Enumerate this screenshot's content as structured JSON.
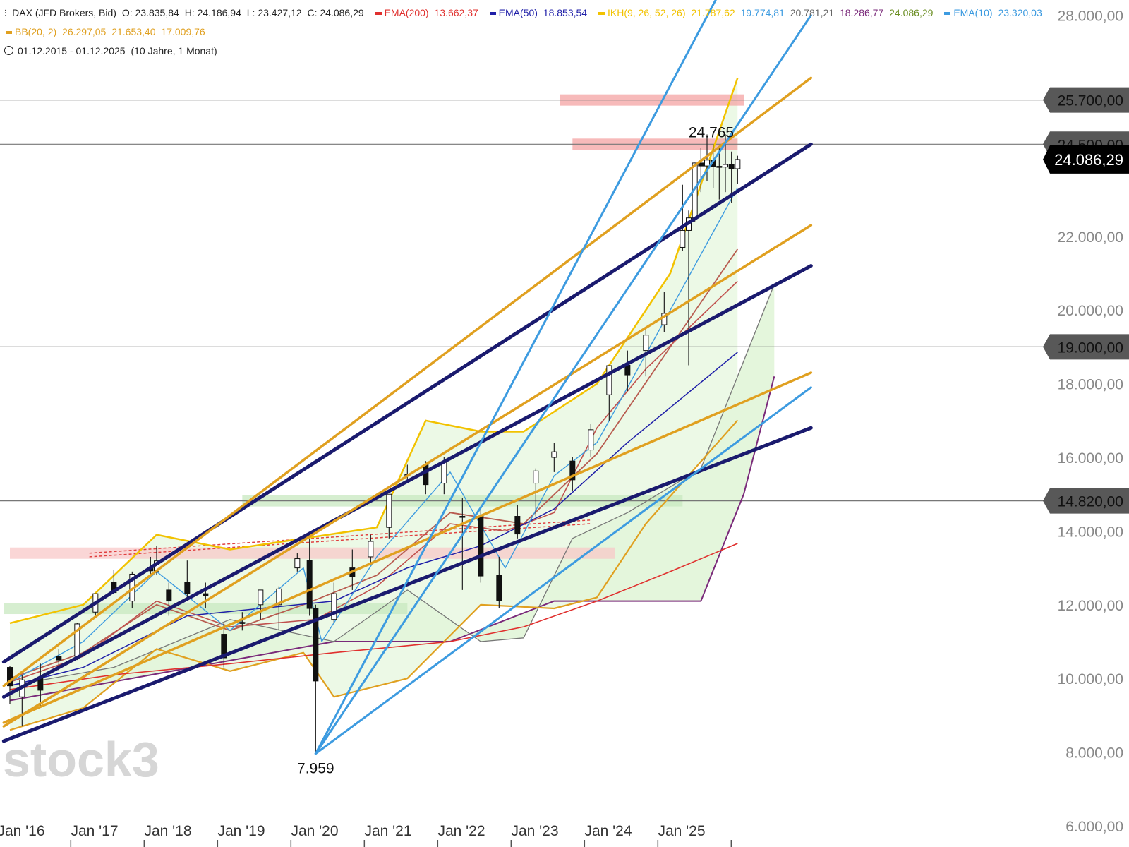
{
  "header": {
    "symbol": "DAX (JFD Brokers, Bid)",
    "open": "O: 23.835,84",
    "high": "H: 24.186,94",
    "low": "L: 23.427,12",
    "close": "C: 24.086,29",
    "indicators": [
      {
        "label": "EMA(200)",
        "value": "13.662,37",
        "color": "#e0302e"
      },
      {
        "label": "EMA(50)",
        "value": "18.853,54",
        "color": "#1f1fa8"
      },
      {
        "label": "IKH(9, 26, 52, 26)",
        "value": "21.787,62",
        "color": "#f2c200"
      },
      {
        "label": "",
        "value": "19.774,81",
        "color": "#3d9be0"
      },
      {
        "label": "",
        "value": "20.781,21",
        "color": "#666666"
      },
      {
        "label": "",
        "value": "18.286,77",
        "color": "#7a2a7a"
      },
      {
        "label": "",
        "value": "24.086,29",
        "color": "#6b8e23"
      },
      {
        "label": "EMA(10)",
        "value": "23.320,03",
        "color": "#3d9be0"
      }
    ],
    "bb": {
      "label": "BB(20, 2)",
      "values": [
        "26.297,05",
        "21.653,40",
        "17.009,76"
      ],
      "color": "#e0a020"
    },
    "range": "01.12.2015 - 01.12.2025",
    "range_note": "(10 Jahre, 1 Monat)"
  },
  "watermark": "stock3",
  "chart_data": {
    "type": "candlestick",
    "x_tick_labels": [
      "Jan '16",
      "Jan '17",
      "Jan '18",
      "Jan '19",
      "Jan '20",
      "Jan '21",
      "Jan '22",
      "Jan '23",
      "Jan '24",
      "Jan '25"
    ],
    "y_tick_labels": [
      "6.000,00",
      "8.000,00",
      "10.000,00",
      "12.000,00",
      "14.000,00",
      "16.000,00",
      "18.000,00",
      "20.000,00",
      "22.000,00",
      "28.000,00"
    ],
    "ylim": [
      6000,
      28000
    ],
    "price_tags": [
      {
        "text": "25.700,00",
        "value": 25700
      },
      {
        "text": "24.500,00",
        "value": 24500
      },
      {
        "text": "19.000,00",
        "value": 19000
      },
      {
        "text": "14.820,00",
        "value": 14820
      }
    ],
    "last_price": {
      "text": "24.086,29",
      "value": 24086.29
    },
    "annotations": [
      {
        "text": "24.765",
        "date": "2025-07",
        "value": 24765
      },
      {
        "text": "7.959",
        "date": "2020-03",
        "value": 7959
      }
    ],
    "candles": [
      {
        "d": "2016-01",
        "o": 10300,
        "h": 10330,
        "l": 9310,
        "c": 9800
      },
      {
        "d": "2016-03",
        "o": 9500,
        "h": 10100,
        "l": 8700,
        "c": 9960
      },
      {
        "d": "2016-06",
        "o": 10000,
        "h": 10400,
        "l": 9200,
        "c": 9680
      },
      {
        "d": "2016-09",
        "o": 10600,
        "h": 10800,
        "l": 10200,
        "c": 10500
      },
      {
        "d": "2016-12",
        "o": 10600,
        "h": 11500,
        "l": 10500,
        "c": 11480
      },
      {
        "d": "2017-03",
        "o": 11800,
        "h": 12300,
        "l": 11700,
        "c": 12300
      },
      {
        "d": "2017-06",
        "o": 12600,
        "h": 12950,
        "l": 12300,
        "c": 12330
      },
      {
        "d": "2017-09",
        "o": 12100,
        "h": 12900,
        "l": 11900,
        "c": 12830
      },
      {
        "d": "2017-12",
        "o": 13000,
        "h": 13300,
        "l": 12800,
        "c": 12920
      },
      {
        "d": "2018-01",
        "o": 12900,
        "h": 13600,
        "l": 12800,
        "c": 13190
      },
      {
        "d": "2018-03",
        "o": 12400,
        "h": 12600,
        "l": 11700,
        "c": 12100
      },
      {
        "d": "2018-06",
        "o": 12600,
        "h": 13200,
        "l": 12100,
        "c": 12300
      },
      {
        "d": "2018-09",
        "o": 12300,
        "h": 12600,
        "l": 11900,
        "c": 12250
      },
      {
        "d": "2018-12",
        "o": 11200,
        "h": 11500,
        "l": 10300,
        "c": 10560
      },
      {
        "d": "2019-03",
        "o": 11500,
        "h": 11800,
        "l": 11300,
        "c": 11520
      },
      {
        "d": "2019-06",
        "o": 12000,
        "h": 12400,
        "l": 11600,
        "c": 12400
      },
      {
        "d": "2019-09",
        "o": 12000,
        "h": 12500,
        "l": 11300,
        "c": 12430
      },
      {
        "d": "2019-12",
        "o": 13000,
        "h": 13400,
        "l": 12900,
        "c": 13250
      },
      {
        "d": "2020-02",
        "o": 13200,
        "h": 13800,
        "l": 11700,
        "c": 11900
      },
      {
        "d": "2020-03",
        "o": 11900,
        "h": 12000,
        "l": 7959,
        "c": 9930
      },
      {
        "d": "2020-06",
        "o": 11600,
        "h": 12600,
        "l": 11500,
        "c": 12300
      },
      {
        "d": "2020-09",
        "o": 13000,
        "h": 13500,
        "l": 12400,
        "c": 12760
      },
      {
        "d": "2020-12",
        "o": 13300,
        "h": 13900,
        "l": 13100,
        "c": 13720
      },
      {
        "d": "2021-03",
        "o": 14100,
        "h": 15000,
        "l": 13800,
        "c": 15000
      },
      {
        "d": "2021-06",
        "o": 15500,
        "h": 15800,
        "l": 15300,
        "c": 15530
      },
      {
        "d": "2021-09",
        "o": 15800,
        "h": 15900,
        "l": 15000,
        "c": 15260
      },
      {
        "d": "2021-12",
        "o": 15300,
        "h": 16000,
        "l": 15000,
        "c": 15880
      },
      {
        "d": "2022-03",
        "o": 14400,
        "h": 14900,
        "l": 12400,
        "c": 14400
      },
      {
        "d": "2022-06",
        "o": 14400,
        "h": 14600,
        "l": 12600,
        "c": 12780
      },
      {
        "d": "2022-09",
        "o": 12800,
        "h": 13300,
        "l": 11900,
        "c": 12110
      },
      {
        "d": "2022-12",
        "o": 14400,
        "h": 14700,
        "l": 13800,
        "c": 13920
      },
      {
        "d": "2023-03",
        "o": 15300,
        "h": 15700,
        "l": 14400,
        "c": 15630
      },
      {
        "d": "2023-06",
        "o": 16000,
        "h": 16400,
        "l": 15600,
        "c": 16150
      },
      {
        "d": "2023-09",
        "o": 15900,
        "h": 16000,
        "l": 15100,
        "c": 15390
      },
      {
        "d": "2023-12",
        "o": 16200,
        "h": 16900,
        "l": 16000,
        "c": 16750
      },
      {
        "d": "2024-03",
        "o": 17700,
        "h": 18500,
        "l": 17000,
        "c": 18490
      },
      {
        "d": "2024-06",
        "o": 18500,
        "h": 18900,
        "l": 17800,
        "c": 18240
      },
      {
        "d": "2024-09",
        "o": 18900,
        "h": 19500,
        "l": 18200,
        "c": 19320
      },
      {
        "d": "2024-12",
        "o": 19600,
        "h": 20500,
        "l": 19400,
        "c": 19910
      },
      {
        "d": "2025-03",
        "o": 21700,
        "h": 23400,
        "l": 21600,
        "c": 22160
      },
      {
        "d": "2025-04",
        "o": 22160,
        "h": 22700,
        "l": 18500,
        "c": 22500
      },
      {
        "d": "2025-05",
        "o": 22500,
        "h": 24000,
        "l": 22400,
        "c": 23990
      },
      {
        "d": "2025-06",
        "o": 23990,
        "h": 24400,
        "l": 23200,
        "c": 23910
      },
      {
        "d": "2025-07",
        "o": 23910,
        "h": 24765,
        "l": 23500,
        "c": 24070
      },
      {
        "d": "2025-08",
        "o": 24070,
        "h": 24500,
        "l": 23300,
        "c": 23900
      },
      {
        "d": "2025-09",
        "o": 23900,
        "h": 24400,
        "l": 23000,
        "c": 23880
      },
      {
        "d": "2025-10",
        "o": 23880,
        "h": 24770,
        "l": 23200,
        "c": 23950
      },
      {
        "d": "2025-11",
        "o": 23950,
        "h": 24300,
        "l": 22900,
        "c": 23835
      },
      {
        "d": "2025-12",
        "o": 23835,
        "h": 24187,
        "l": 23427,
        "c": 24086
      }
    ],
    "ema200": [
      [
        "2016-01",
        9700
      ],
      [
        "2017-06",
        10100
      ],
      [
        "2019-01",
        10400
      ],
      [
        "2020-06",
        10700
      ],
      [
        "2022-01",
        11000
      ],
      [
        "2023-01",
        11400
      ],
      [
        "2024-01",
        12100
      ],
      [
        "2025-01",
        12900
      ],
      [
        "2025-12",
        13662
      ]
    ],
    "ema50": [
      [
        "2016-01",
        9800
      ],
      [
        "2017-01",
        10300
      ],
      [
        "2018-06",
        11700
      ],
      [
        "2019-06",
        11900
      ],
      [
        "2020-06",
        12100
      ],
      [
        "2021-06",
        13000
      ],
      [
        "2022-06",
        13600
      ],
      [
        "2023-06",
        14600
      ],
      [
        "2024-06",
        16400
      ],
      [
        "2025-12",
        18854
      ]
    ],
    "kijun_trend": [
      [
        "2016-01",
        9900
      ],
      [
        "2017-01",
        10600
      ],
      [
        "2018-01",
        12100
      ],
      [
        "2019-01",
        11400
      ],
      [
        "2020-03",
        11600
      ],
      [
        "2021-01",
        12500
      ],
      [
        "2022-01",
        14200
      ],
      [
        "2022-10",
        14000
      ],
      [
        "2023-06",
        14500
      ],
      [
        "2024-01",
        16800
      ],
      [
        "2024-09",
        18400
      ],
      [
        "2025-12",
        20781
      ]
    ],
    "ema10": [
      [
        "2016-01",
        9900
      ],
      [
        "2017-01",
        11000
      ],
      [
        "2018-01",
        12900
      ],
      [
        "2019-01",
        11300
      ],
      [
        "2020-01",
        13000
      ],
      [
        "2020-04",
        11000
      ],
      [
        "2021-01",
        13300
      ],
      [
        "2022-01",
        15600
      ],
      [
        "2022-10",
        13000
      ],
      [
        "2023-06",
        15500
      ],
      [
        "2024-01",
        16400
      ],
      [
        "2025-01",
        20000
      ],
      [
        "2025-12",
        23320
      ]
    ],
    "bb_upper": [
      [
        "2016-01",
        11500
      ],
      [
        "2017-01",
        12000
      ],
      [
        "2018-01",
        13900
      ],
      [
        "2019-01",
        13500
      ],
      [
        "2020-01",
        13800
      ],
      [
        "2021-01",
        14100
      ],
      [
        "2021-09",
        17000
      ],
      [
        "2022-06",
        16700
      ],
      [
        "2023-01",
        16700
      ],
      [
        "2024-01",
        18000
      ],
      [
        "2025-01",
        21000
      ],
      [
        "2025-12",
        26297
      ]
    ],
    "bb_middle": [
      [
        "2016-01",
        10000
      ],
      [
        "2017-01",
        10700
      ],
      [
        "2018-01",
        12000
      ],
      [
        "2019-01",
        11300
      ],
      [
        "2020-01",
        12000
      ],
      [
        "2021-01",
        12800
      ],
      [
        "2022-01",
        14500
      ],
      [
        "2023-01",
        14200
      ],
      [
        "2024-01",
        16100
      ],
      [
        "2025-01",
        19000
      ],
      [
        "2025-12",
        21653
      ]
    ],
    "bb_lower": [
      [
        "2016-01",
        8600
      ],
      [
        "2017-01",
        9200
      ],
      [
        "2018-01",
        10800
      ],
      [
        "2019-01",
        10200
      ],
      [
        "2020-01",
        10700
      ],
      [
        "2020-06",
        9500
      ],
      [
        "2021-06",
        10000
      ],
      [
        "2022-06",
        12000
      ],
      [
        "2023-06",
        11900
      ],
      [
        "2024-01",
        12200
      ],
      [
        "2024-09",
        14200
      ],
      [
        "2025-12",
        17010
      ]
    ],
    "span_a": [
      [
        "2016-01",
        9800
      ],
      [
        "2017-06",
        10300
      ],
      [
        "2019-01",
        11600
      ],
      [
        "2020-06",
        11000
      ],
      [
        "2021-06",
        12400
      ],
      [
        "2022-06",
        11000
      ],
      [
        "2023-01",
        11100
      ],
      [
        "2023-09",
        13800
      ],
      [
        "2024-06",
        14500
      ],
      [
        "2025-06",
        15700
      ],
      [
        "2026-06",
        20700
      ]
    ],
    "span_b": [
      [
        "2016-01",
        9400
      ],
      [
        "2020-06",
        11000
      ],
      [
        "2022-01",
        11000
      ],
      [
        "2023-06",
        12100
      ],
      [
        "2025-06",
        12100
      ],
      [
        "2026-01",
        15000
      ],
      [
        "2026-06",
        18200
      ]
    ],
    "trend_lines": [
      {
        "color": "#1a1a6e",
        "p1": [
          "2015-12",
          10450
        ],
        "p2": [
          "2026-12",
          24500
        ]
      },
      {
        "color": "#1a1a6e",
        "p1": [
          "2015-12",
          9500
        ],
        "p2": [
          "2026-12",
          21200
        ]
      },
      {
        "color": "#1a1a6e",
        "p1": [
          "2015-12",
          8300
        ],
        "p2": [
          "2026-12",
          16800
        ]
      },
      {
        "color": "#e0a020",
        "p1": [
          "2015-12",
          9800
        ],
        "p2": [
          "2026-12",
          26300
        ]
      },
      {
        "color": "#e0a020",
        "p1": [
          "2015-12",
          8700
        ],
        "p2": [
          "2026-12",
          22300
        ]
      },
      {
        "color": "#e0a020",
        "p1": [
          "2015-12",
          8800
        ],
        "p2": [
          "2026-12",
          18300
        ]
      },
      {
        "color": "#3d9be0",
        "p1": [
          "2020-03",
          7959
        ],
        "p2": [
          "2025-09",
          28600
        ]
      },
      {
        "color": "#3d9be0",
        "p1": [
          "2020-03",
          7959
        ],
        "p2": [
          "2026-12",
          28000
        ]
      },
      {
        "color": "#3d9be0",
        "p1": [
          "2020-03",
          7959
        ],
        "p2": [
          "2026-12",
          17900
        ]
      }
    ],
    "zones": [
      {
        "color": "#f4a3a3",
        "from": "2023-07",
        "to": "2026-01",
        "value": 25700
      },
      {
        "color": "#f4a3a3",
        "from": "2023-09",
        "to": "2025-12",
        "value": 24500
      },
      {
        "color": "#c8e8c0",
        "from": "2019-03",
        "to": "2025-03",
        "value": 14820
      },
      {
        "color": "#c8e8c0",
        "from": "2015-12",
        "to": "2021-06",
        "value": 11900
      },
      {
        "color": "#f8c8c8",
        "from": "2016-01",
        "to": "2024-04",
        "value": 13400
      }
    ]
  }
}
